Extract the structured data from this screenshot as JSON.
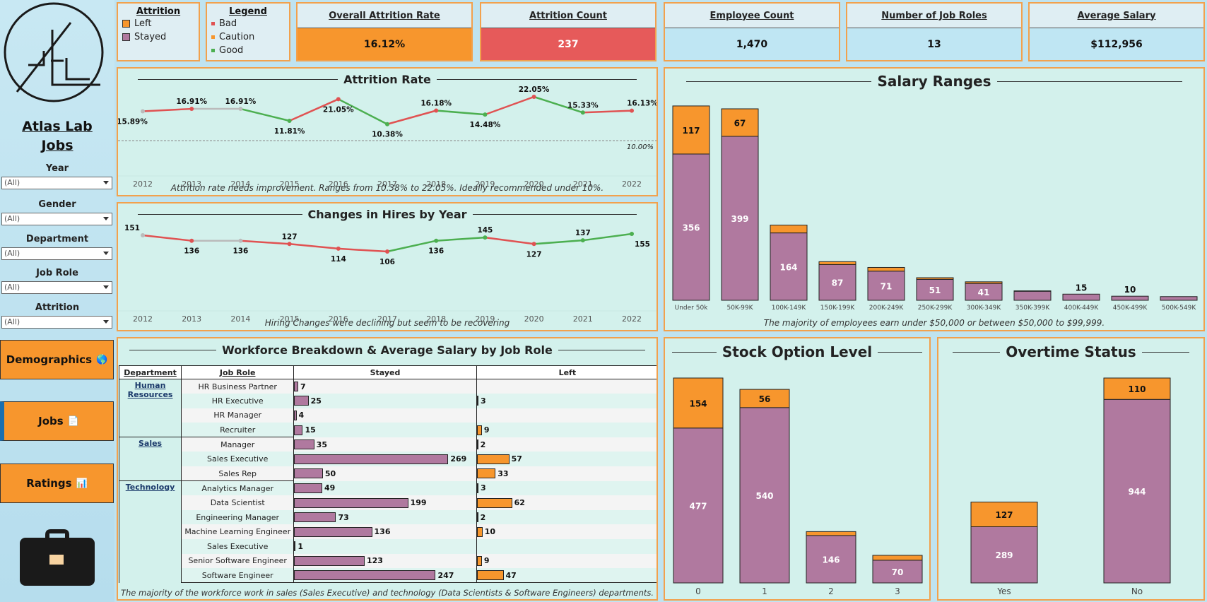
{
  "app": {
    "brand": "Atlas Lab Jobs",
    "brand_line1": "Atlas Lab",
    "brand_line2": "Jobs"
  },
  "filters": [
    {
      "label": "Year",
      "value": "(All)"
    },
    {
      "label": "Gender",
      "value": "(All)"
    },
    {
      "label": "Department",
      "value": "(All)"
    },
    {
      "label": "Job Role",
      "value": "(All)"
    },
    {
      "label": "Attrition",
      "value": "(All)"
    }
  ],
  "nav": [
    {
      "label": "Demographics",
      "icon": "globe-icon",
      "glyph": "🌎",
      "active": false
    },
    {
      "label": "Jobs",
      "icon": "page-icon",
      "glyph": "📄",
      "active": true
    },
    {
      "label": "Ratings",
      "icon": "bar-chart-icon",
      "glyph": "📊",
      "active": false
    }
  ],
  "attrition_legend": {
    "title": "Attrition",
    "items": [
      {
        "label": "Left",
        "color": "#f7962d"
      },
      {
        "label": "Stayed",
        "color": "#b0799f"
      }
    ]
  },
  "status_legend": {
    "title": "Legend",
    "items": [
      {
        "label": "Bad",
        "color": "#e05252"
      },
      {
        "label": "Caution",
        "color": "#f7962d"
      },
      {
        "label": "Good",
        "color": "#4caf50"
      }
    ]
  },
  "kpis": [
    {
      "title": "Overall Attrition Rate",
      "value": "16.12%",
      "color": "#f7962d"
    },
    {
      "title": "Attrition Count",
      "value": "237",
      "color": "#e65a5a"
    },
    {
      "title": "Employee Count",
      "value": "1,470",
      "color": "#bfe6f3"
    },
    {
      "title": "Number of Job Roles",
      "value": "13",
      "color": "#bfe6f3"
    },
    {
      "title": "Average Salary",
      "value": "$112,956",
      "color": "#bfe6f3"
    }
  ],
  "colors": {
    "left": "#f7962d",
    "stayed": "#b0799f",
    "bad": "#e05252",
    "good": "#4caf50",
    "neutral": "#bbbbbb"
  },
  "chart_data": [
    {
      "type": "line",
      "title": "Attrition Rate",
      "x": [
        "2012",
        "2013",
        "2014",
        "2015",
        "2016",
        "2017",
        "2018",
        "2019",
        "2020",
        "2021",
        "2022"
      ],
      "values": [
        15.89,
        16.91,
        16.91,
        11.81,
        21.05,
        10.38,
        16.18,
        14.48,
        22.05,
        15.33,
        16.13
      ],
      "labels": [
        "15.89%",
        "16.91%",
        "16.91%",
        "11.81%",
        "21.05%",
        "10.38%",
        "16.18%",
        "14.48%",
        "22.05%",
        "15.33%",
        "16.13%"
      ],
      "reference_line": {
        "value": 10,
        "label": "10.00%"
      },
      "caption": "Attrition rate needs improvement. Ranges from 10.38% to 22.05%. Ideally recommended under 10%."
    },
    {
      "type": "line",
      "title": "Changes in Hires by Year",
      "x": [
        "2012",
        "2013",
        "2014",
        "2015",
        "2016",
        "2017",
        "2018",
        "2019",
        "2020",
        "2021",
        "2022"
      ],
      "values": [
        151,
        136,
        136,
        127,
        114,
        106,
        136,
        145,
        127,
        137,
        155
      ],
      "caption": "Hiring Changes were declining but seem to be recovering"
    },
    {
      "type": "bar",
      "title": "Salary Ranges",
      "categories": [
        "Under 50k",
        "50K-99K",
        "100K-149K",
        "150K-199K",
        "200K-249K",
        "250K-299K",
        "300K-349K",
        "350K-399K",
        "400K-449K",
        "450K-499K",
        "500K-549K"
      ],
      "series": [
        {
          "name": "Stayed",
          "values": [
            356,
            399,
            164,
            87,
            71,
            51,
            41,
            22,
            15,
            10,
            9
          ]
        },
        {
          "name": "Left",
          "values": [
            117,
            67,
            19,
            7,
            9,
            4,
            4,
            1,
            0,
            0,
            0
          ]
        }
      ],
      "stacked": true,
      "shown_labels": {
        "Stayed": [
          356,
          399,
          164,
          87,
          71,
          51,
          41,
          null,
          null,
          null,
          null
        ],
        "Left": [
          117,
          67,
          null,
          null,
          null,
          null,
          null,
          null,
          null,
          null,
          null
        ],
        "Total": [
          null,
          null,
          null,
          null,
          null,
          null,
          null,
          null,
          15,
          10,
          null
        ]
      },
      "caption": "The majority of employees earn under $50,000 or between $50,000 to $99,999."
    },
    {
      "type": "bar",
      "title": "Stock Option Level",
      "categories": [
        "0",
        "1",
        "2",
        "3"
      ],
      "series": [
        {
          "name": "Stayed",
          "values": [
            477,
            540,
            146,
            70
          ]
        },
        {
          "name": "Left",
          "values": [
            154,
            56,
            12,
            15
          ]
        }
      ],
      "stacked": true
    },
    {
      "type": "bar",
      "title": "Overtime Status",
      "categories": [
        "Yes",
        "No"
      ],
      "series": [
        {
          "name": "Stayed",
          "values": [
            289,
            944
          ]
        },
        {
          "name": "Left",
          "values": [
            127,
            110
          ]
        }
      ],
      "stacked": true
    },
    {
      "type": "table",
      "title": "Workforce Breakdown & Average Salary by Job Role",
      "headers": [
        "Department",
        "Job Role",
        "Stayed",
        "Left"
      ],
      "rows": [
        {
          "dept": "Human Resources",
          "role": "HR Business Partner",
          "stayed": 7,
          "left": null
        },
        {
          "dept": "",
          "role": "HR Executive",
          "stayed": 25,
          "left": 3
        },
        {
          "dept": "",
          "role": "HR Manager",
          "stayed": 4,
          "left": null
        },
        {
          "dept": "",
          "role": "Recruiter",
          "stayed": 15,
          "left": 9
        },
        {
          "dept": "Sales",
          "role": "Manager",
          "stayed": 35,
          "left": 2
        },
        {
          "dept": "",
          "role": "Sales Executive",
          "stayed": 269,
          "left": 57
        },
        {
          "dept": "",
          "role": "Sales Rep",
          "stayed": 50,
          "left": 33
        },
        {
          "dept": "Technology",
          "role": "Analytics Manager",
          "stayed": 49,
          "left": 3
        },
        {
          "dept": "",
          "role": "Data Scientist",
          "stayed": 199,
          "left": 62
        },
        {
          "dept": "",
          "role": "Engineering Manager",
          "stayed": 73,
          "left": 2
        },
        {
          "dept": "",
          "role": "Machine Learning Engineer",
          "stayed": 136,
          "left": 10
        },
        {
          "dept": "",
          "role": "Sales Executive",
          "stayed": 1,
          "left": null
        },
        {
          "dept": "",
          "role": "Senior Software Engineer",
          "stayed": 123,
          "left": 9
        },
        {
          "dept": "",
          "role": "Software Engineer",
          "stayed": 247,
          "left": 47
        }
      ],
      "caption": "The majority of the workforce work in sales (Sales Executive) and technology (Data Scientists & Software Engineers) departments."
    }
  ]
}
